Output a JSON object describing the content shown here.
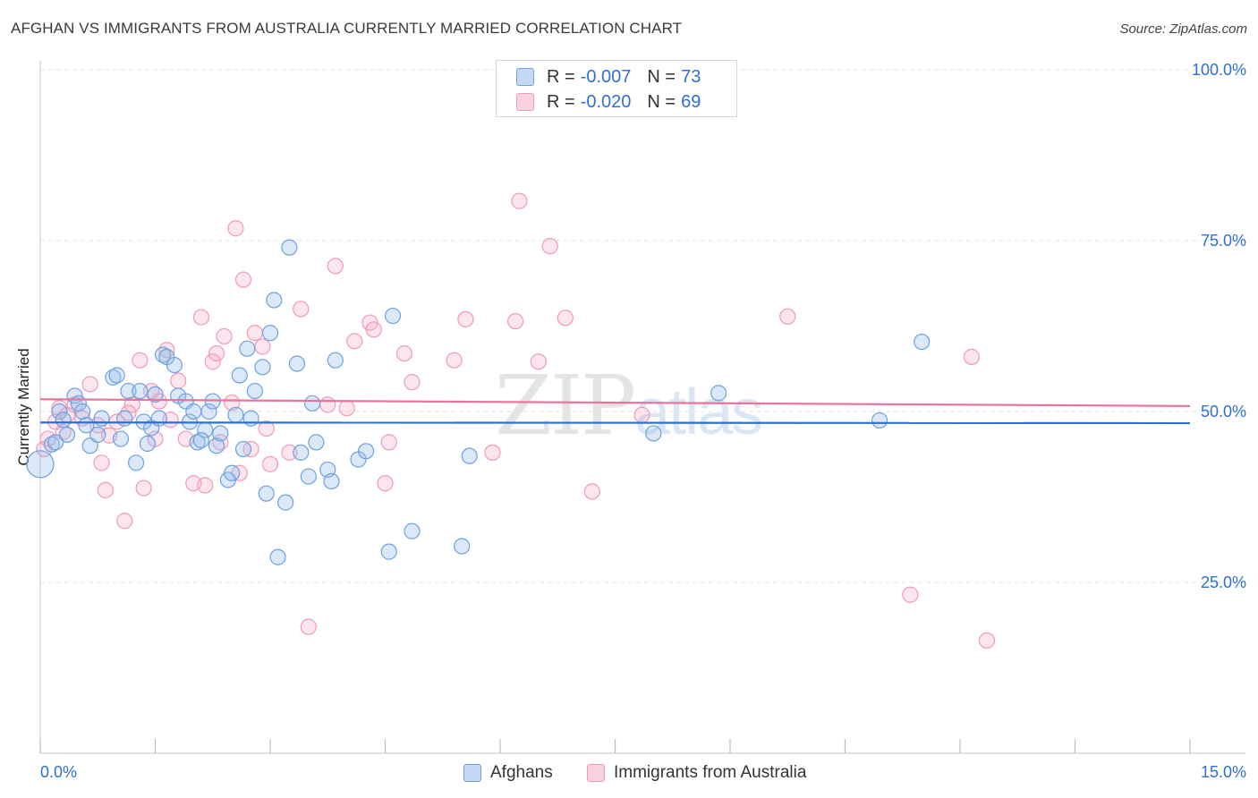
{
  "title": "AFGHAN VS IMMIGRANTS FROM AUSTRALIA CURRENTLY MARRIED CORRELATION CHART",
  "source": "Source: ZipAtlas.com",
  "watermark": {
    "zip": "ZIP",
    "atlas": "atlas"
  },
  "legend": {
    "afghans": {
      "r_label": "R =",
      "r_value": "-0.007",
      "n_label": "N =",
      "n_value": "73"
    },
    "australia": {
      "r_label": "R =",
      "r_value": "-0.020",
      "n_label": "N =",
      "n_value": "69"
    }
  },
  "bottom_legend": {
    "afghans": "Afghans",
    "australia": "Immigrants from Australia"
  },
  "chart_data": {
    "type": "scatter",
    "title": "AFGHAN VS IMMIGRANTS FROM AUSTRALIA CURRENTLY MARRIED CORRELATION CHART",
    "xlabel": "",
    "ylabel": "Currently Married",
    "xlim": [
      0,
      15
    ],
    "ylim": [
      0,
      100
    ],
    "x_tick_labels": [
      "0.0%",
      "15.0%"
    ],
    "y_ticks": [
      25,
      50,
      75,
      100
    ],
    "y_tick_labels": [
      "25.0%",
      "50.0%",
      "75.0%",
      "100.0%"
    ],
    "colors": {
      "afghans": "#6fa0e0",
      "australia": "#ef9ab8",
      "afghans_line": "#2f6fd1",
      "australia_line": "#e8769c"
    },
    "series": [
      {
        "name": "Afghans",
        "trend": {
          "y_at_x0": 48.4,
          "y_at_x15": 48.3
        },
        "points": [
          [
            0.0,
            42.3
          ],
          [
            0.15,
            45.2
          ],
          [
            0.25,
            50.0
          ],
          [
            0.3,
            48.8
          ],
          [
            0.35,
            46.6
          ],
          [
            0.45,
            52.3
          ],
          [
            0.5,
            51.2
          ],
          [
            0.55,
            50.0
          ],
          [
            0.65,
            45.0
          ],
          [
            0.75,
            46.6
          ],
          [
            0.8,
            49.0
          ],
          [
            0.95,
            55.0
          ],
          [
            1.0,
            55.3
          ],
          [
            1.1,
            49.0
          ],
          [
            1.15,
            53.0
          ],
          [
            1.25,
            42.5
          ],
          [
            1.3,
            53.0
          ],
          [
            1.35,
            48.5
          ],
          [
            1.4,
            45.3
          ],
          [
            1.45,
            47.6
          ],
          [
            1.5,
            52.5
          ],
          [
            1.6,
            58.3
          ],
          [
            1.65,
            58.0
          ],
          [
            1.75,
            56.8
          ],
          [
            1.8,
            52.3
          ],
          [
            1.9,
            51.5
          ],
          [
            1.95,
            48.5
          ],
          [
            2.0,
            50.0
          ],
          [
            2.05,
            45.5
          ],
          [
            2.15,
            47.3
          ],
          [
            2.2,
            50.0
          ],
          [
            2.25,
            51.5
          ],
          [
            2.3,
            45.0
          ],
          [
            2.35,
            46.8
          ],
          [
            2.45,
            40.0
          ],
          [
            2.5,
            41.0
          ],
          [
            2.6,
            55.3
          ],
          [
            2.65,
            44.5
          ],
          [
            2.7,
            59.2
          ],
          [
            2.75,
            49.0
          ],
          [
            2.8,
            53.0
          ],
          [
            2.9,
            56.5
          ],
          [
            2.95,
            38.0
          ],
          [
            3.0,
            61.5
          ],
          [
            3.05,
            66.3
          ],
          [
            3.1,
            28.7
          ],
          [
            3.2,
            36.7
          ],
          [
            3.25,
            74.0
          ],
          [
            3.35,
            57.0
          ],
          [
            3.5,
            40.5
          ],
          [
            3.55,
            51.2
          ],
          [
            3.6,
            45.5
          ],
          [
            3.75,
            41.5
          ],
          [
            3.8,
            39.8
          ],
          [
            3.85,
            57.5
          ],
          [
            4.15,
            43.0
          ],
          [
            4.25,
            44.2
          ],
          [
            4.55,
            29.5
          ],
          [
            4.6,
            64.0
          ],
          [
            4.85,
            32.5
          ],
          [
            5.5,
            30.3
          ],
          [
            5.6,
            43.5
          ],
          [
            8.0,
            46.8
          ],
          [
            8.85,
            52.7
          ],
          [
            10.95,
            48.7
          ],
          [
            11.5,
            60.2
          ],
          [
            0.2,
            45.5
          ],
          [
            0.6,
            48.0
          ],
          [
            1.05,
            46.0
          ],
          [
            1.55,
            49.0
          ],
          [
            2.1,
            45.8
          ],
          [
            2.55,
            49.5
          ],
          [
            3.4,
            44.0
          ]
        ]
      },
      {
        "name": "Immigrants from Australia",
        "trend": {
          "y_at_x0": 51.8,
          "y_at_x15": 50.8
        },
        "points": [
          [
            0.05,
            44.5
          ],
          [
            0.1,
            46.0
          ],
          [
            0.2,
            48.5
          ],
          [
            0.25,
            50.5
          ],
          [
            0.35,
            49.5
          ],
          [
            0.45,
            51.0
          ],
          [
            0.55,
            49.0
          ],
          [
            0.65,
            54.0
          ],
          [
            0.75,
            48.0
          ],
          [
            0.8,
            42.5
          ],
          [
            0.85,
            38.5
          ],
          [
            0.9,
            46.5
          ],
          [
            1.0,
            48.5
          ],
          [
            1.1,
            34.0
          ],
          [
            1.2,
            51.0
          ],
          [
            1.3,
            57.5
          ],
          [
            1.35,
            38.8
          ],
          [
            1.45,
            53.0
          ],
          [
            1.5,
            46.0
          ],
          [
            1.55,
            51.5
          ],
          [
            1.65,
            59.0
          ],
          [
            1.7,
            48.8
          ],
          [
            1.8,
            54.5
          ],
          [
            1.9,
            46.0
          ],
          [
            2.0,
            39.5
          ],
          [
            2.1,
            63.8
          ],
          [
            2.15,
            39.2
          ],
          [
            2.25,
            57.3
          ],
          [
            2.3,
            58.5
          ],
          [
            2.4,
            61.0
          ],
          [
            2.5,
            51.3
          ],
          [
            2.55,
            76.8
          ],
          [
            2.6,
            41.0
          ],
          [
            2.65,
            69.3
          ],
          [
            2.75,
            44.5
          ],
          [
            2.8,
            61.5
          ],
          [
            2.9,
            59.5
          ],
          [
            2.95,
            47.5
          ],
          [
            3.0,
            42.3
          ],
          [
            3.25,
            44.0
          ],
          [
            3.4,
            65.0
          ],
          [
            3.5,
            18.5
          ],
          [
            3.75,
            51.0
          ],
          [
            3.85,
            71.3
          ],
          [
            4.1,
            60.3
          ],
          [
            4.3,
            63.0
          ],
          [
            4.35,
            62.0
          ],
          [
            4.5,
            39.5
          ],
          [
            4.55,
            45.5
          ],
          [
            4.75,
            58.5
          ],
          [
            4.85,
            54.3
          ],
          [
            5.4,
            57.5
          ],
          [
            5.55,
            63.5
          ],
          [
            5.9,
            44.0
          ],
          [
            6.2,
            63.2
          ],
          [
            6.25,
            80.8
          ],
          [
            6.5,
            57.3
          ],
          [
            6.65,
            74.2
          ],
          [
            6.85,
            63.7
          ],
          [
            7.2,
            38.3
          ],
          [
            7.85,
            49.5
          ],
          [
            9.75,
            63.9
          ],
          [
            11.35,
            23.2
          ],
          [
            12.15,
            58.0
          ],
          [
            12.35,
            16.5
          ],
          [
            0.3,
            47.0
          ],
          [
            1.15,
            49.8
          ],
          [
            2.35,
            45.5
          ],
          [
            4.0,
            50.5
          ]
        ]
      }
    ]
  }
}
